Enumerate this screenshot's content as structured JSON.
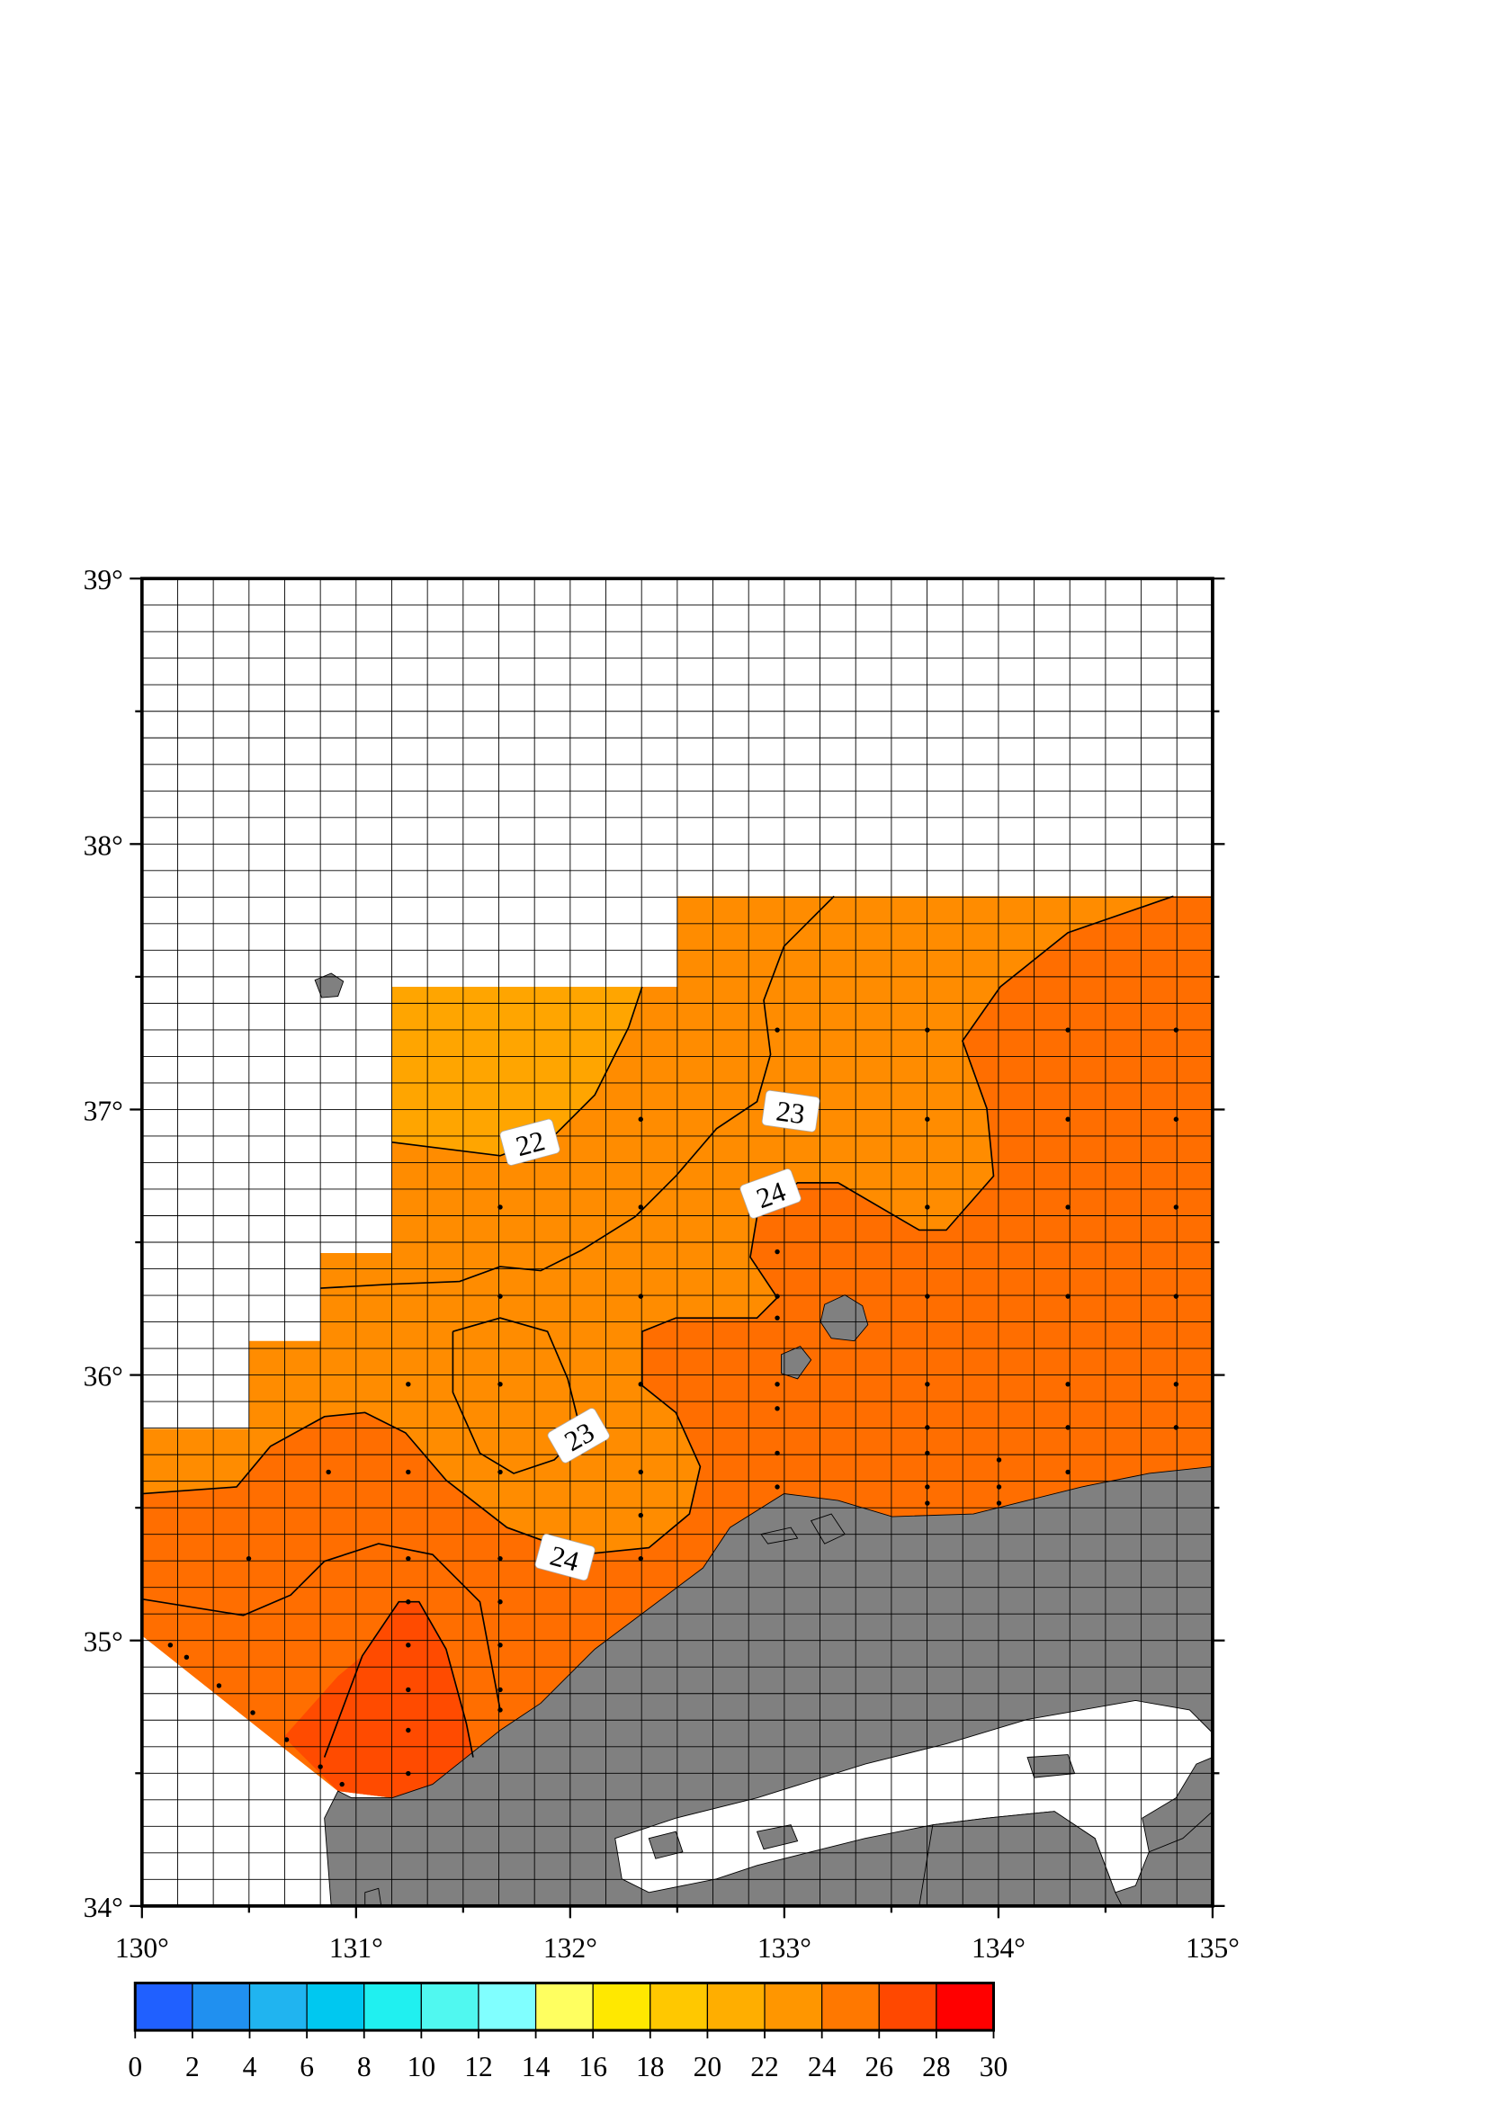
{
  "map": {
    "lat_labels": [
      {
        "value": 34,
        "label": "34°"
      },
      {
        "value": 35,
        "label": "35°"
      },
      {
        "value": 36,
        "label": "36°"
      },
      {
        "value": 37,
        "label": "37°"
      },
      {
        "value": 38,
        "label": "38°"
      },
      {
        "value": 39,
        "label": "39°"
      }
    ],
    "lon_labels": [
      {
        "value": 130,
        "label": "130°"
      },
      {
        "value": 131,
        "label": "131°"
      },
      {
        "value": 132,
        "label": "132°"
      },
      {
        "value": 133,
        "label": "133°"
      },
      {
        "value": 134,
        "label": "134°"
      },
      {
        "value": 135,
        "label": "135°"
      }
    ],
    "contour_labels": [
      22,
      23,
      24,
      23,
      24
    ],
    "colorbar": {
      "ticks": [
        0,
        2,
        4,
        6,
        8,
        10,
        12,
        14,
        16,
        18,
        20,
        22,
        24,
        26,
        28,
        30
      ],
      "colors": [
        "#2060ff",
        "#2090f0",
        "#20b4f0",
        "#00c8f0",
        "#20f0f0",
        "#50f8f0",
        "#80ffff",
        "#ffff60",
        "#ffe800",
        "#ffc800",
        "#ffae00",
        "#ff9600",
        "#ff7800",
        "#ff4800",
        "#ff0000"
      ]
    }
  }
}
